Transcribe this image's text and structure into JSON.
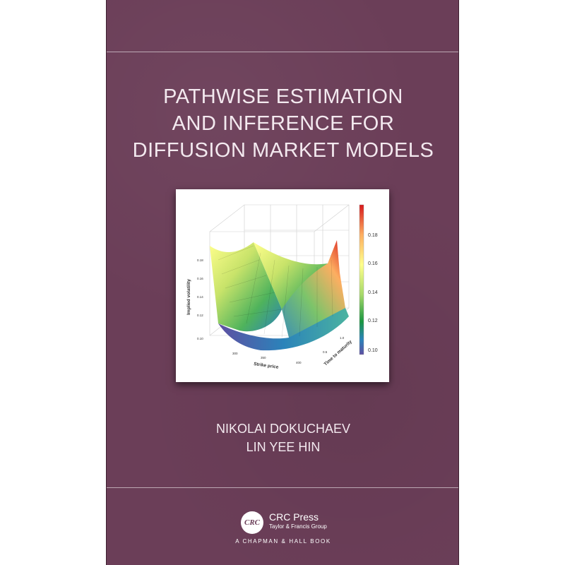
{
  "book": {
    "title_lines": [
      "PATHWISE ESTIMATION",
      "AND INFERENCE FOR",
      "DIFFUSION MARKET MODELS"
    ],
    "authors": [
      "NIKOLAI DOKUCHAEV",
      "LIN YEE HIN"
    ],
    "background_color": "#6b3e58"
  },
  "figure": {
    "ylabel": "Implied volatility",
    "xlabel": "Strike price",
    "zlabel": "Time to maturity",
    "y_ticks": [
      "0.18",
      "0.16",
      "0.14",
      "0.12",
      "0.10"
    ],
    "x_ticks": [
      "300",
      "350",
      "400"
    ],
    "z_ticks": [
      "1.0",
      "0.5"
    ],
    "colorbar_ticks": [
      "0.18",
      "0.16",
      "0.14",
      "0.12",
      "0.10"
    ],
    "colorbar_colors": [
      "#d7191c",
      "#fdae61",
      "#ffff8c",
      "#a6d96a",
      "#1a9641",
      "#2b83ba",
      "#5e4fa2"
    ]
  },
  "publisher": {
    "logo_text": "CRC",
    "name": "CRC Press",
    "group": "Taylor & Francis Group",
    "imprint": "A CHAPMAN & HALL BOOK"
  }
}
